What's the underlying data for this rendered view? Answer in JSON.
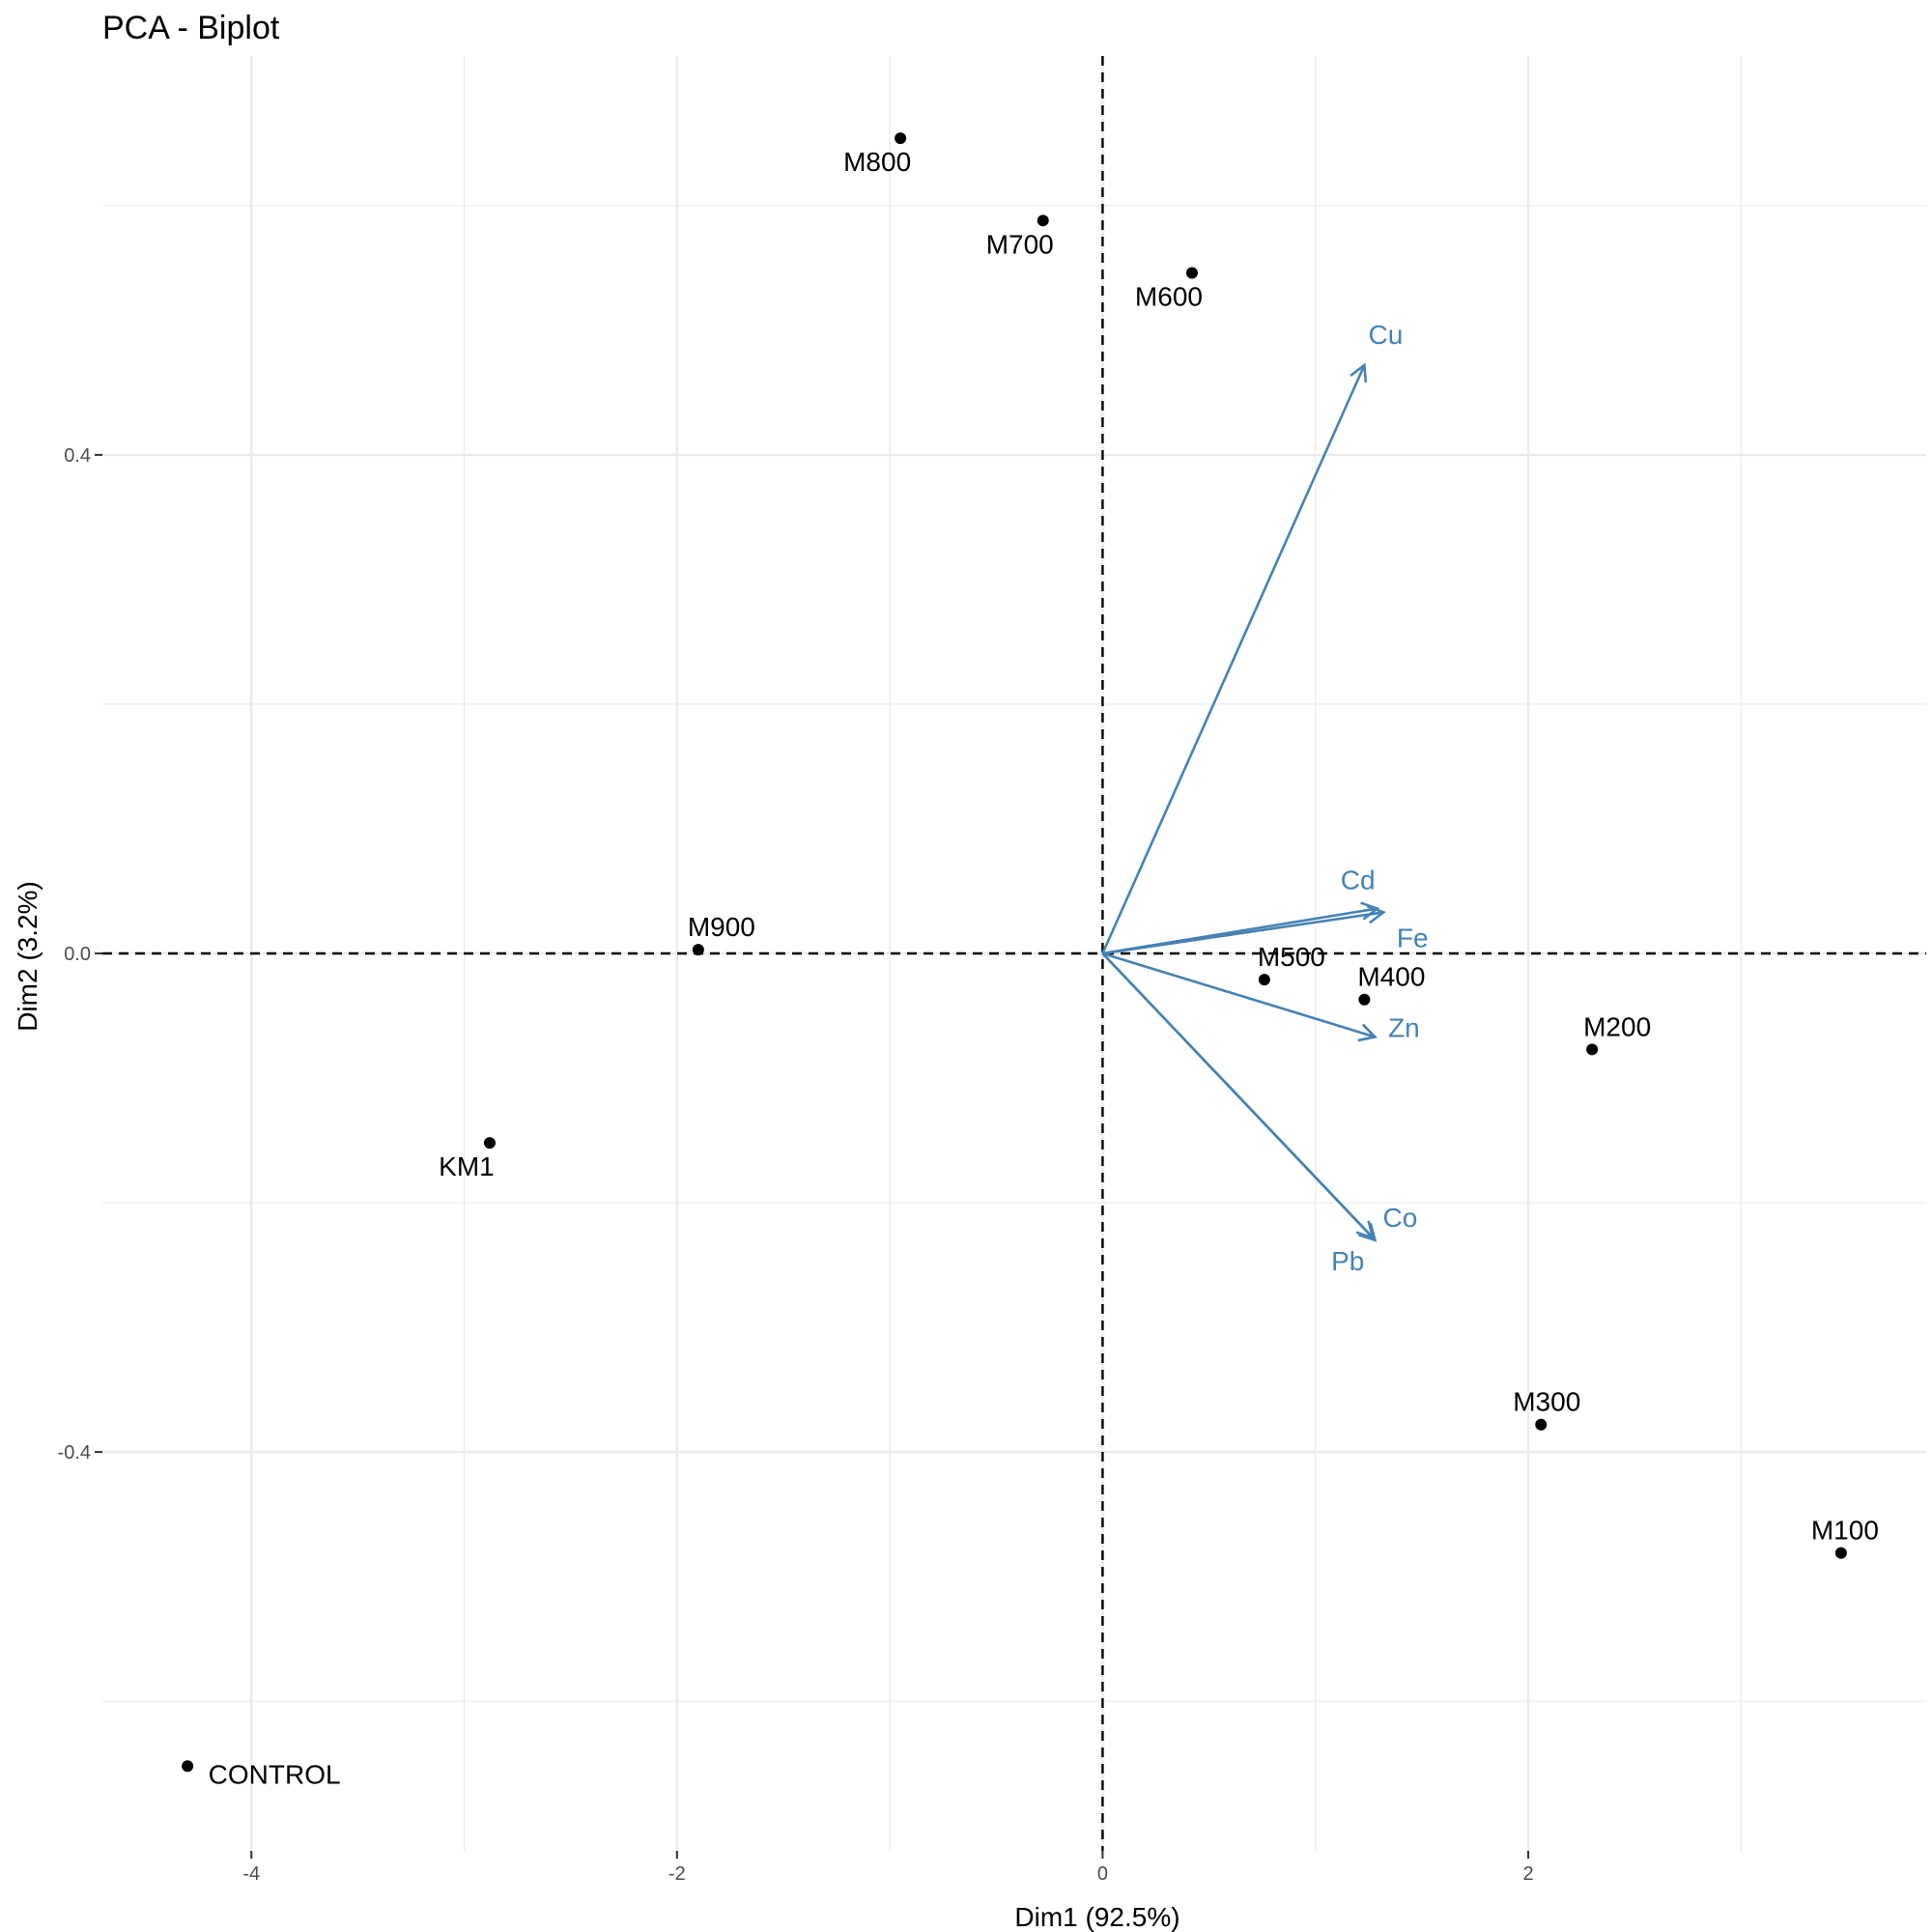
{
  "chart_data": {
    "type": "scatter",
    "title": "PCA - Biplot",
    "xlabel": "Dim1 (92.5%)",
    "ylabel": "Dim2 (3.2%)",
    "xlim": [
      -4.7,
      3.87
    ],
    "ylim": [
      -0.72,
      0.72
    ],
    "x_ticks": [
      -4,
      -2,
      0,
      2
    ],
    "x_tick_labels": [
      "-4",
      "-2",
      "0",
      "2"
    ],
    "y_ticks": [
      -0.4,
      0.0,
      0.4
    ],
    "y_tick_labels": [
      "-0.4",
      "0.0",
      "0.4"
    ],
    "grid": true,
    "reference_lines": {
      "x": 0,
      "y": 0,
      "style": "dashed"
    },
    "colors": {
      "points": "#000000",
      "variables": "#4682b4",
      "grid": "#ebebeb"
    },
    "points": [
      {
        "label": "M800",
        "x": -0.95,
        "y": 0.654
      },
      {
        "label": "M700",
        "x": -0.28,
        "y": 0.588
      },
      {
        "label": "M600",
        "x": 0.42,
        "y": 0.546
      },
      {
        "label": "M900",
        "x": -1.9,
        "y": 0.003
      },
      {
        "label": "M500",
        "x": 0.76,
        "y": -0.021
      },
      {
        "label": "M400",
        "x": 1.23,
        "y": -0.037
      },
      {
        "label": "M200",
        "x": 2.3,
        "y": -0.077
      },
      {
        "label": "KM1",
        "x": -2.88,
        "y": -0.152
      },
      {
        "label": "M300",
        "x": 2.06,
        "y": -0.378
      },
      {
        "label": "M100",
        "x": 3.47,
        "y": -0.481
      },
      {
        "label": "CONTROL",
        "x": -4.3,
        "y": -0.652
      }
    ],
    "variables": [
      {
        "label": "Cu",
        "x": 1.23,
        "y": 0.472
      },
      {
        "label": "Cd",
        "x": 1.29,
        "y": 0.036
      },
      {
        "label": "Fe",
        "x": 1.32,
        "y": 0.033
      },
      {
        "label": "Zn",
        "x": 1.28,
        "y": -0.067
      },
      {
        "label": "Co",
        "x": 1.28,
        "y": -0.23
      },
      {
        "label": "Pb",
        "x": 1.27,
        "y": -0.228
      }
    ]
  }
}
